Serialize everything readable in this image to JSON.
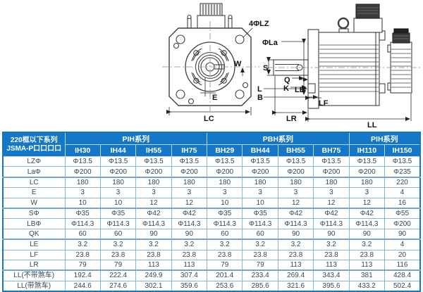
{
  "diagram": {
    "labels": {
      "lz4": "4ΦLZ",
      "la": "ΦLa",
      "w": "W",
      "e": "E",
      "lc": "LC",
      "s": "S",
      "q": "Q",
      "k": "K",
      "l": "L",
      "b": "B",
      "le": "LE",
      "lf": "LF",
      "lr": "LR",
      "ll": "LL"
    }
  },
  "table": {
    "corner_header": {
      "line1": "220框以下系列",
      "line2": "JSMA-P口口口口"
    },
    "groups": [
      {
        "label": "PIH系列",
        "span": 4
      },
      {
        "label": "PBH系列",
        "span": 4
      },
      {
        "label": "PIH系列",
        "span": 2
      }
    ],
    "models": [
      "IH30",
      "IH44",
      "IH55",
      "IH75",
      "BH29",
      "BH44",
      "BH55",
      "BH75",
      "IH110",
      "IH150"
    ],
    "rows": [
      {
        "label": "LZΦ",
        "group_start": false,
        "values": [
          "Φ13.5",
          "Φ13.5",
          "Φ13.5",
          "Φ13.5",
          "Φ13.5",
          "Φ13.5",
          "Φ13.5",
          "Φ13.5",
          "Φ13.5",
          "Φ13.5"
        ]
      },
      {
        "label": "LaΦ",
        "group_start": false,
        "values": [
          "Φ200",
          "Φ200",
          "Φ200",
          "Φ200",
          "Φ200",
          "Φ200",
          "Φ200",
          "Φ200",
          "Φ200",
          "Φ235"
        ]
      },
      {
        "label": "LC",
        "group_start": true,
        "values": [
          "180",
          "180",
          "180",
          "180",
          "180",
          "180",
          "180",
          "180",
          "180",
          "220"
        ]
      },
      {
        "label": "E",
        "group_start": false,
        "values": [
          "3",
          "3",
          "3",
          "3",
          "3",
          "3",
          "3",
          "3",
          "3",
          "4"
        ]
      },
      {
        "label": "W",
        "group_start": false,
        "values": [
          "10",
          "10",
          "12",
          "12",
          "10",
          "10",
          "12",
          "12",
          "12",
          "16"
        ]
      },
      {
        "label": "SΦ",
        "group_start": true,
        "values": [
          "Φ35",
          "Φ35",
          "Φ42",
          "Φ42",
          "Φ35",
          "Φ35",
          "Φ42",
          "Φ42",
          "Φ42",
          "Φ55"
        ]
      },
      {
        "label": "LBΦ",
        "group_start": false,
        "values": [
          "Φ114.3",
          "Φ114.3",
          "Φ114.3",
          "Φ114.3",
          "Φ114.3",
          "Φ114.3",
          "Φ114.3",
          "Φ114.3",
          "Φ114.3",
          "Φ200"
        ]
      },
      {
        "label": "QK",
        "group_start": false,
        "values": [
          "60",
          "60",
          "90",
          "90",
          "60",
          "60",
          "90",
          "90",
          "90",
          "90"
        ]
      },
      {
        "label": "LE",
        "group_start": true,
        "values": [
          "3.2",
          "3.2",
          "3.2",
          "3.2",
          "3.2",
          "3.2",
          "3.2",
          "3.2",
          "3.2",
          "4"
        ]
      },
      {
        "label": "LF",
        "group_start": false,
        "values": [
          "23.8",
          "23.8",
          "23.8",
          "23.8",
          "23.8",
          "23.8",
          "23.8",
          "23.8",
          "23.8",
          "20"
        ]
      },
      {
        "label": "LR",
        "group_start": false,
        "values": [
          "79",
          "79",
          "113",
          "113",
          "79",
          "79",
          "113",
          "113",
          "113",
          "116"
        ]
      },
      {
        "label": "LL(不带煞车)",
        "group_start": true,
        "values": [
          "192.4",
          "222.4",
          "249.9",
          "307.4",
          "201.4",
          "233.4",
          "269.4",
          "343.4",
          "381",
          "428.4"
        ]
      },
      {
        "label": "LL(带煞车)",
        "group_start": false,
        "values": [
          "244.6",
          "274.6",
          "302.1",
          "359.6",
          "253.6",
          "285.6",
          "321.6",
          "395.6",
          "433.2",
          "502.4"
        ]
      }
    ],
    "colors": {
      "header_bg": "#1577c8",
      "grid_border": "#8ab6dc",
      "body_text": "#37474f"
    }
  }
}
